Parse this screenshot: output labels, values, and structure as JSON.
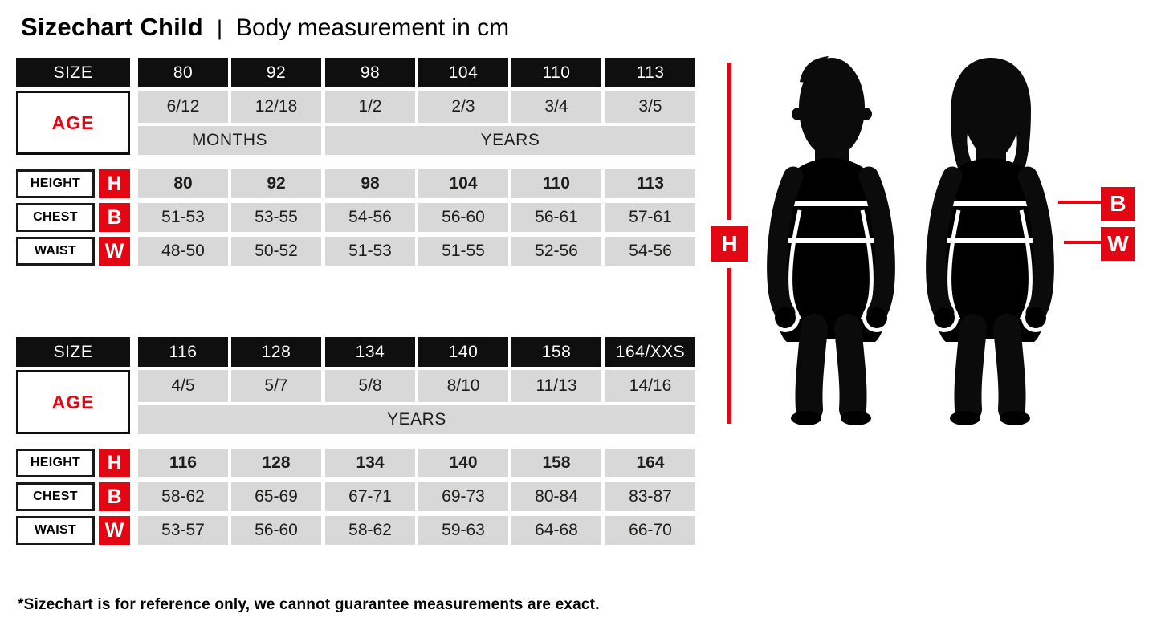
{
  "header": {
    "title": "Sizechart Child",
    "separator": "|",
    "subtitle": "Body measurement in cm"
  },
  "labels": {
    "size": "SIZE",
    "age": "AGE",
    "height": "HEIGHT",
    "chest": "CHEST",
    "waist": "WAIST",
    "height_key": "H",
    "chest_key": "B",
    "waist_key": "W"
  },
  "tables": [
    {
      "sizes": [
        "80",
        "92",
        "98",
        "104",
        "110",
        "113"
      ],
      "ages": [
        "6/12",
        "12/18",
        "1/2",
        "2/3",
        "3/4",
        "3/5"
      ],
      "age_units": [
        {
          "label": "MONTHS",
          "span": 2
        },
        {
          "label": "YEARS",
          "span": 4
        }
      ],
      "rows": [
        {
          "label": "HEIGHT",
          "key": "H",
          "bold": true,
          "values": [
            "80",
            "92",
            "98",
            "104",
            "110",
            "113"
          ]
        },
        {
          "label": "CHEST",
          "key": "B",
          "bold": false,
          "values": [
            "51-53",
            "53-55",
            "54-56",
            "56-60",
            "56-61",
            "57-61"
          ]
        },
        {
          "label": "WAIST",
          "key": "W",
          "bold": false,
          "values": [
            "48-50",
            "50-52",
            "51-53",
            "51-55",
            "52-56",
            "54-56"
          ]
        }
      ]
    },
    {
      "sizes": [
        "116",
        "128",
        "134",
        "140",
        "158",
        "164/XXS"
      ],
      "ages": [
        "4/5",
        "5/7",
        "5/8",
        "8/10",
        "11/13",
        "14/16"
      ],
      "age_units": [
        {
          "label": "YEARS",
          "span": 6
        }
      ],
      "rows": [
        {
          "label": "HEIGHT",
          "key": "H",
          "bold": true,
          "values": [
            "116",
            "128",
            "134",
            "140",
            "158",
            "164"
          ]
        },
        {
          "label": "CHEST",
          "key": "B",
          "bold": false,
          "values": [
            "58-62",
            "65-69",
            "67-71",
            "69-73",
            "80-84",
            "83-87"
          ]
        },
        {
          "label": "WAIST",
          "key": "W",
          "bold": false,
          "values": [
            "53-57",
            "56-60",
            "58-62",
            "59-63",
            "64-68",
            "66-70"
          ]
        }
      ]
    }
  ],
  "footnote": "*Sizechart is for reference only, we cannot guarantee measurements are exact.",
  "colors": {
    "accent_red": "#e30613",
    "cell_black": "#0f0f0f",
    "cell_grey": "#d8d8d8"
  }
}
